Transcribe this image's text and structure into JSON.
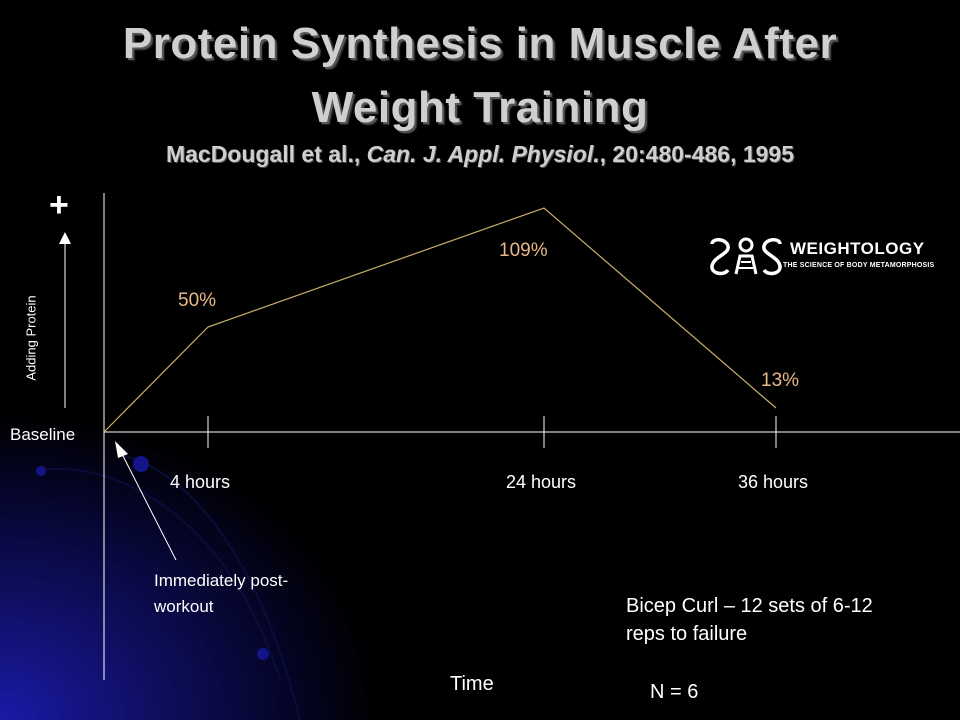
{
  "slide": {
    "title_line1": "Protein Synthesis in Muscle After",
    "title_line2": "Weight Training",
    "subtitle_authors": "MacDougall et al., ",
    "subtitle_journal": "Can. J. Appl. Physiol.",
    "subtitle_ref": ", 20:480-486, 1995",
    "plus_sign": "+",
    "y_axis_label": "Adding Protein",
    "baseline_label": "Baseline",
    "annotation_line1": "Immediately post-",
    "annotation_line2": "workout",
    "note_line1": "Bicep Curl – 12 sets of 6-12",
    "note_line2": "reps to failure",
    "n_label": "N = 6",
    "x_axis_label": "Time"
  },
  "logo": {
    "name": "WEIGHTOLOGY",
    "tagline": "THE SCIENCE OF BODY METAMORPHOSIS"
  },
  "colors": {
    "background": "#000000",
    "line": "#c8b06a",
    "percent_labels": "#e8b887",
    "gradient_blue": "#1a1aa8"
  },
  "chart_data": {
    "type": "line",
    "title": "Protein Synthesis in Muscle After Weight Training",
    "xlabel": "Time",
    "ylabel": "Adding Protein",
    "x": [
      0,
      4,
      24,
      36
    ],
    "x_ticks": [
      {
        "value": 4,
        "label": "4 hours"
      },
      {
        "value": 24,
        "label": "24 hours"
      },
      {
        "value": 36,
        "label": "36 hours"
      }
    ],
    "series": [
      {
        "values": [
          0,
          50,
          109,
          13
        ],
        "labels": [
          "",
          "50%",
          "109%",
          "13%"
        ]
      }
    ],
    "xlim": [
      0,
      50
    ],
    "ylim": [
      0,
      120
    ],
    "grid": false,
    "legend": "none"
  }
}
